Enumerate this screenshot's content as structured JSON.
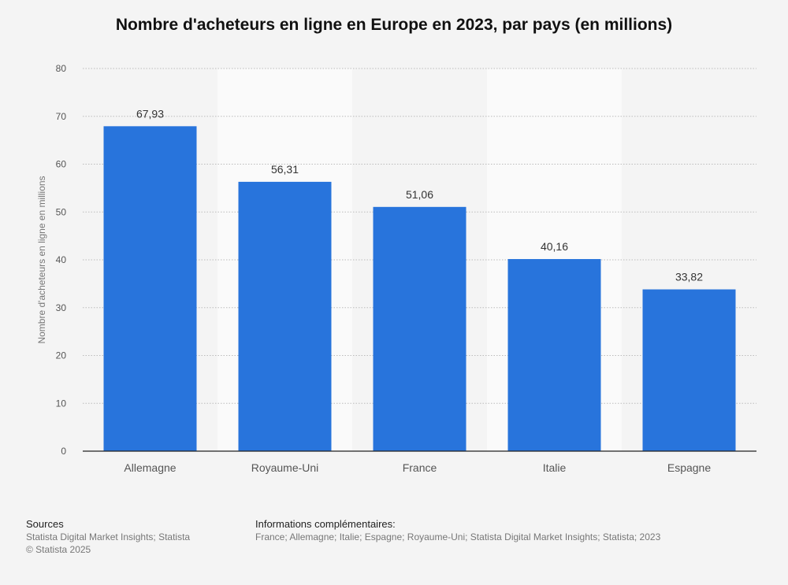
{
  "chart_data": {
    "type": "bar",
    "title": "Nombre d'acheteurs en ligne en Europe en 2023, par pays (en millions)",
    "ylabel": "Nombre d'acheteurs en ligne en millions",
    "xlabel": "",
    "categories": [
      "Allemagne",
      "Royaume-Uni",
      "France",
      "Italie",
      "Espagne"
    ],
    "values": [
      67.93,
      56.31,
      51.06,
      40.16,
      33.82
    ],
    "value_labels": [
      "67,93",
      "56,31",
      "51,06",
      "40,16",
      "33,82"
    ],
    "ylim": [
      0,
      80
    ],
    "yticks": [
      0,
      10,
      20,
      30,
      40,
      50,
      60,
      70,
      80
    ],
    "grid": true,
    "bar_color": "#2874dc"
  },
  "footer": {
    "sources_heading": "Sources",
    "sources_lines": [
      "Statista Digital Market Insights; Statista",
      "© Statista 2025"
    ],
    "info_heading": "Informations complémentaires:",
    "info_text": "France; Allemagne; Italie; Espagne; Royaume-Uni; Statista Digital Market Insights; Statista; 2023"
  }
}
